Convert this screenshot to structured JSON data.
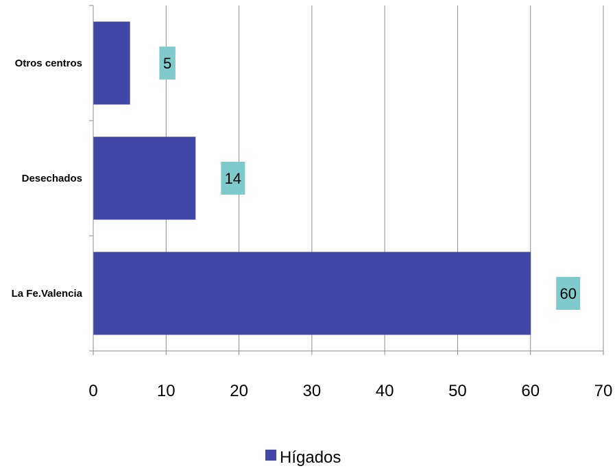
{
  "chart_data": {
    "type": "bar",
    "orientation": "horizontal",
    "categories": [
      "La Fe.Valencia",
      "Desechados",
      "Otros centros"
    ],
    "series": [
      {
        "name": "Hígados",
        "values": [
          60,
          14,
          5
        ]
      }
    ],
    "xlim": [
      0,
      70
    ],
    "x_ticks": [
      0,
      10,
      20,
      30,
      40,
      50,
      60,
      70
    ],
    "grid": "vertical",
    "legend_position": "bottom",
    "data_labels": true,
    "colors": {
      "bar": "#4348A8",
      "data_label_bg": "#7FCBCB",
      "grid": "#8c8c8c"
    }
  }
}
